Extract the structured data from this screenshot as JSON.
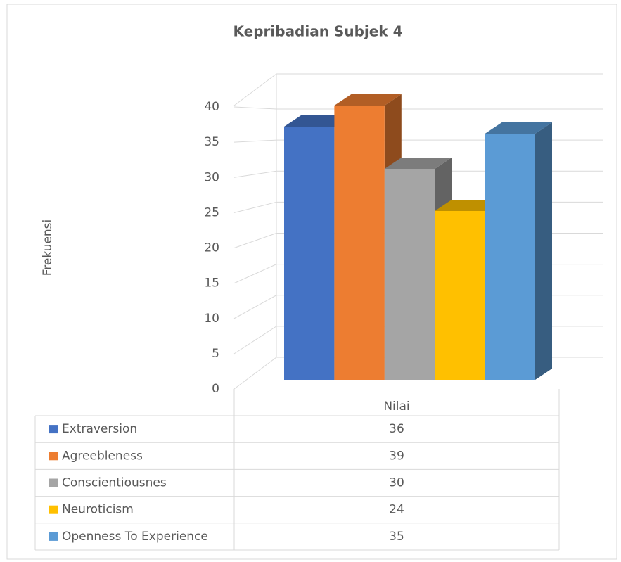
{
  "chart_data": {
    "type": "bar3d",
    "title": "Kepribadian Subjek 4",
    "y_label": "Frekuensi",
    "categories": [
      "Nilai"
    ],
    "series": [
      {
        "name": "Extraversion",
        "color": "#4472c4",
        "values": [
          36
        ]
      },
      {
        "name": "Agreebleness",
        "color": "#ed7d31",
        "values": [
          39
        ]
      },
      {
        "name": "Conscientiousnes",
        "color": "#a5a5a5",
        "values": [
          30
        ]
      },
      {
        "name": "Neuroticism",
        "color": "#ffc000",
        "values": [
          24
        ]
      },
      {
        "name": "Openness To Experience",
        "color": "#5b9bd5",
        "values": [
          35
        ]
      }
    ],
    "ylim": [
      0,
      40
    ],
    "yticks": [
      0,
      5,
      10,
      15,
      20,
      25,
      30,
      35,
      40
    ],
    "grid": true,
    "data_table": true
  }
}
